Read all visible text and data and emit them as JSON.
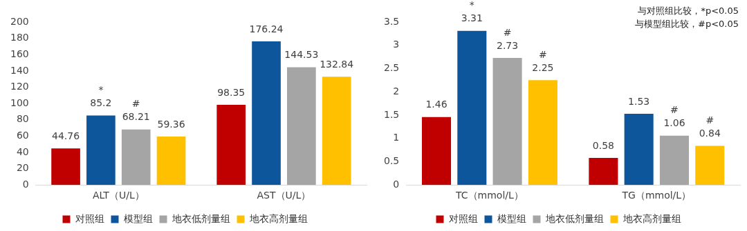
{
  "chart_data": [
    {
      "type": "bar",
      "categories": [
        "ALT（U/L）",
        "AST（U/L）"
      ],
      "series": [
        {
          "name": "对照组",
          "color": "#c00000",
          "values": [
            44.76,
            98.35
          ],
          "value_labels": [
            "44.76",
            "98.35"
          ]
        },
        {
          "name": "模型组",
          "color": "#0e569c",
          "values": [
            85.2,
            176.24
          ],
          "value_labels": [
            "*\n85.2",
            "176.24"
          ]
        },
        {
          "name": "地衣低剂量组",
          "color": "#a5a5a5",
          "values": [
            68.21,
            144.53
          ],
          "value_labels": [
            "#\n68.21",
            "144.53"
          ]
        },
        {
          "name": "地衣高剂量组",
          "color": "#ffc000",
          "values": [
            59.36,
            132.84
          ],
          "value_labels": [
            "59.36",
            "132.84"
          ]
        }
      ],
      "ylim": [
        0,
        200
      ],
      "yticks": [
        0,
        20,
        40,
        60,
        80,
        100,
        120,
        140,
        160,
        180,
        200
      ],
      "grid": false,
      "legend": "bottom"
    },
    {
      "type": "bar",
      "categories": [
        "TC（mmol/L）",
        "TG（mmol/L）"
      ],
      "series": [
        {
          "name": "对照组",
          "color": "#c00000",
          "values": [
            1.46,
            0.58
          ],
          "value_labels": [
            "1.46",
            "0.58"
          ]
        },
        {
          "name": "模型组",
          "color": "#0e569c",
          "values": [
            3.31,
            1.53
          ],
          "value_labels": [
            "*\n3.31",
            "1.53"
          ]
        },
        {
          "name": "地衣低剂量组",
          "color": "#a5a5a5",
          "values": [
            2.73,
            1.06
          ],
          "value_labels": [
            "#\n2.73",
            "#\n1.06"
          ]
        },
        {
          "name": "地衣高剂量组",
          "color": "#ffc000",
          "values": [
            2.25,
            0.84
          ],
          "value_labels": [
            "#\n2.25",
            "#\n0.84"
          ]
        }
      ],
      "ylim": [
        0,
        3.5
      ],
      "yticks": [
        0,
        0.5,
        1,
        1.5,
        2,
        2.5,
        3,
        3.5
      ],
      "grid": false,
      "legend": "bottom",
      "annotations": [
        "与对照组比较，*p<0.05",
        "与模型组比较，#p<0.05"
      ]
    }
  ]
}
